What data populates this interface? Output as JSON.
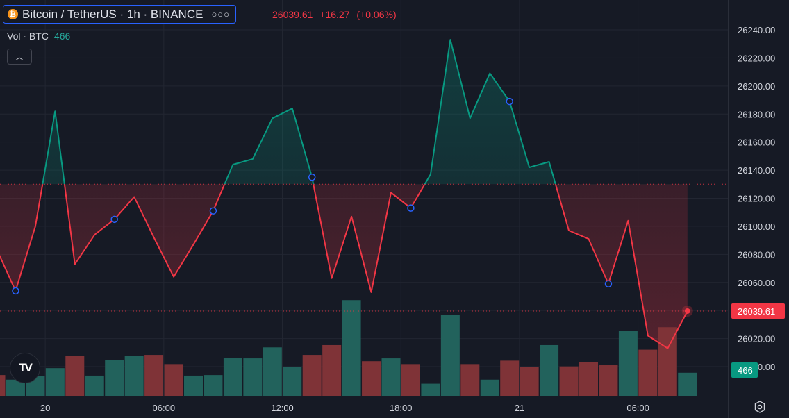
{
  "header": {
    "coin_glyph": "₿",
    "symbol": "Bitcoin / TetherUS · 1h · BINANCE",
    "more_glyph": "○○○",
    "last_price": "26039.61",
    "change": "+16.27",
    "change_pct": "(+0.06%)",
    "vol_label": "Vol · BTC",
    "vol_value": "466",
    "collapse_glyph": "︿",
    "logo_text": "TV"
  },
  "colors": {
    "up": "#089981",
    "down": "#f23645",
    "vol_up": "#22625c",
    "vol_down": "#7f3337",
    "background": "#161a25",
    "grid": "#222632"
  },
  "chart_data": {
    "type": "line",
    "subtype": "baseline",
    "title": "Bitcoin / TetherUS · 1h · BINANCE",
    "baseline": 26130,
    "current_price": 26039.61,
    "price_label": "26039.61",
    "volume_label": "466",
    "ylim": [
      25990,
      26250
    ],
    "y_ticks": [
      "26240.00",
      "26220.00",
      "26200.00",
      "26180.00",
      "26160.00",
      "26140.00",
      "26120.00",
      "26100.00",
      "26080.00",
      "26060.00",
      "26040.00",
      "26020.00",
      "26000.00"
    ],
    "x_ticks": [
      {
        "i": 2.5,
        "label": "20"
      },
      {
        "i": 8.5,
        "label": "06:00"
      },
      {
        "i": 14.5,
        "label": "12:00"
      },
      {
        "i": 20.5,
        "label": "18:00"
      },
      {
        "i": 26.5,
        "label": "21"
      },
      {
        "i": 32.5,
        "label": "06:00"
      }
    ],
    "series": [
      {
        "type": "line",
        "values": [
          26085,
          26054,
          26100,
          26182,
          26073,
          26094,
          26105,
          26121,
          26092,
          26064,
          26087,
          26111,
          26144,
          26148,
          26177,
          26184,
          26135,
          26063,
          26107,
          26053,
          26124,
          26113,
          26137,
          26233,
          26177,
          26209,
          26189,
          26142,
          26146,
          26097,
          26091,
          26059,
          26104,
          26022,
          26013,
          26039.61
        ],
        "markers": [
          1,
          6,
          11,
          16,
          21,
          26,
          31
        ]
      },
      {
        "type": "volume",
        "values": [
          36,
          28,
          34,
          48,
          69,
          35,
          62,
          69,
          71,
          55,
          35,
          36,
          66,
          65,
          84,
          50,
          71,
          88,
          166,
          60,
          65,
          55,
          21,
          140,
          55,
          28,
          61,
          50,
          88,
          51,
          59,
          53,
          113,
          80,
          119,
          40
        ],
        "directions": [
          "down",
          "up",
          "up",
          "up",
          "down",
          "up",
          "up",
          "up",
          "down",
          "down",
          "up",
          "up",
          "up",
          "up",
          "up",
          "up",
          "down",
          "down",
          "up",
          "down",
          "up",
          "down",
          "up",
          "up",
          "down",
          "up",
          "down",
          "down",
          "up",
          "down",
          "down",
          "down",
          "up",
          "down",
          "down",
          "up"
        ]
      }
    ]
  }
}
